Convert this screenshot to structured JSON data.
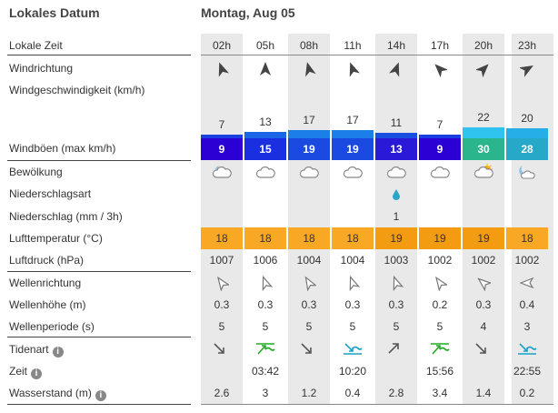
{
  "header": {
    "left_title": "Lokales Datum",
    "date": "Montag, Aug 05"
  },
  "labels": {
    "local_time": "Lokale Zeit",
    "wind_dir": "Windrichtung",
    "wind_speed": "Windgeschwindigkeit (km/h)",
    "gusts": "Windböen (max km/h)",
    "clouds": "Bewölkung",
    "precip_type": "Niederschlagsart",
    "precip": "Niederschlag (mm / 3h)",
    "air_temp": "Lufttemperatur (°C)",
    "pressure": "Luftdruck (hPa)",
    "wave_dir": "Wellenrichtung",
    "wave_height": "Wellenhöhe (m)",
    "wave_period": "Wellenperiode (s)",
    "tide_type": "Tidenart",
    "tide_time": "Zeit",
    "water_level": "Wasserstand (m)"
  },
  "info_icon": "i",
  "hours": [
    "02h",
    "05h",
    "08h",
    "11h",
    "14h",
    "17h",
    "20h",
    "23h"
  ],
  "wind_dir_deg": [
    -20,
    0,
    -15,
    -20,
    20,
    -45,
    45,
    60
  ],
  "wind_speed": [
    "7",
    "13",
    "17",
    "17",
    "11",
    "7",
    "22",
    "20"
  ],
  "wind_speed_values": [
    7,
    13,
    17,
    17,
    11,
    7,
    22,
    20
  ],
  "wind_bar_colors": [
    "#1a3ee0",
    "#1a66e6",
    "#1a7fe8",
    "#1a7fe8",
    "#1a50e0",
    "#1a3ee0",
    "#2fc4f0",
    "#26aee8"
  ],
  "gusts": [
    "9",
    "15",
    "19",
    "19",
    "13",
    "9",
    "30",
    "28"
  ],
  "gust_colors": [
    "#2a00d4",
    "#1a2fe0",
    "#1a4ae0",
    "#1a4ae0",
    "#2a1ad8",
    "#2a00d4",
    "#2bb58c",
    "#27a8c8"
  ],
  "clouds": [
    "night-cloud-icon",
    "cloud-icon",
    "cloud-icon",
    "cloud-icon",
    "cloud-icon",
    "cloud-icon",
    "sun-cloud-icon",
    "moon-cloud-icon"
  ],
  "precip_type": [
    "",
    "",
    "",
    "",
    "rain-drop-icon",
    "",
    "",
    ""
  ],
  "precip": [
    "",
    "",
    "",
    "",
    "1",
    "",
    "",
    ""
  ],
  "air_temp": [
    "18",
    "18",
    "18",
    "18",
    "19",
    "19",
    "19",
    "18"
  ],
  "temp_colors": [
    "#f9a825",
    "#f9a825",
    "#f9a825",
    "#f9a825",
    "#f39c12",
    "#f39c12",
    "#f39c12",
    "#f9a825"
  ],
  "pressure": [
    "1007",
    "1006",
    "1004",
    "1004",
    "1003",
    "1002",
    "1002",
    "1002"
  ],
  "wave_dir_deg": [
    -35,
    -20,
    -30,
    -20,
    -20,
    -35,
    -50,
    -90
  ],
  "wave_height": [
    "0.3",
    "0.3",
    "0.3",
    "0.3",
    "0.3",
    "0.2",
    "0.3",
    "0.4"
  ],
  "wave_period": [
    "5",
    "5",
    "5",
    "5",
    "5",
    "5",
    "4",
    "3"
  ],
  "tide_type": [
    "falling-arrow-icon",
    "high-tide-icon",
    "falling-arrow-icon",
    "low-tide-icon",
    "rising-arrow-icon",
    "high-tide-icon",
    "falling-arrow-icon",
    "low-tide-icon"
  ],
  "tide_time": [
    "",
    "03:42",
    "",
    "10:20",
    "",
    "15:56",
    "",
    "22:55"
  ],
  "water_level": [
    "2.6",
    "3",
    "1.2",
    "0.4",
    "2.8",
    "3.4",
    "1.4",
    "0.2"
  ],
  "colors": {
    "tide_high": "#22aa22",
    "tide_low": "#1aa0c8",
    "arrow": "#555555"
  }
}
